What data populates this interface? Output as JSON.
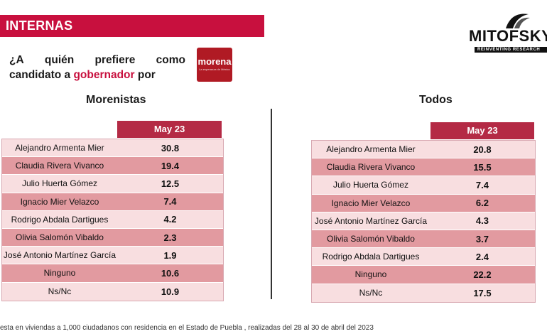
{
  "header": {
    "section_title": "INTERNAS",
    "brand_name": "MITOFSKY",
    "brand_tagline": "REINVENTING RESEARCH"
  },
  "question": {
    "line1_words": [
      "¿A",
      "quién",
      "prefiere",
      "como"
    ],
    "line2_before": "candidato a ",
    "line2_highlight": "gobernador",
    "line2_after": " por"
  },
  "party_logo": {
    "name": "morena",
    "tagline": "La esperanza de México"
  },
  "footnote": "esta en viviendas a 1,000 ciudadanos con residencia en el Estado de Puebla , realizadas del 28 al 30 de abril del 2023",
  "colors": {
    "accent": "#c8103e",
    "header_cell": "#b42a45",
    "row_light": "#f8dee0",
    "row_dark": "#e29aa0"
  },
  "chart_data": [
    {
      "type": "table",
      "title": "Morenistas",
      "column": "May 23",
      "rows": [
        {
          "label": "Alejandro Armenta Mier",
          "value": "30.8"
        },
        {
          "label": "Claudia Rivera Vivanco",
          "value": "19.4"
        },
        {
          "label": "Julio Huerta Gómez",
          "value": "12.5"
        },
        {
          "label": "Ignacio Mier Velazco",
          "value": "7.4"
        },
        {
          "label": "Rodrigo Abdala Dartigues",
          "value": "4.2"
        },
        {
          "label": "Olivia Salomón Vibaldo",
          "value": "2.3"
        },
        {
          "label": "José Antonio Martínez García",
          "value": "1.9"
        },
        {
          "label": "Ninguno",
          "value": "10.6"
        },
        {
          "label": "Ns/Nc",
          "value": "10.9"
        }
      ]
    },
    {
      "type": "table",
      "title": "Todos",
      "column": "May 23",
      "rows": [
        {
          "label": "Alejandro Armenta Mier",
          "value": "20.8"
        },
        {
          "label": "Claudia Rivera Vivanco",
          "value": "15.5"
        },
        {
          "label": "Julio Huerta Gómez",
          "value": "7.4"
        },
        {
          "label": "Ignacio Mier Velazco",
          "value": "6.2"
        },
        {
          "label": "José Antonio Martínez García",
          "value": "4.3"
        },
        {
          "label": "Olivia Salomón Vibaldo",
          "value": "3.7"
        },
        {
          "label": "Rodrigo Abdala Dartigues",
          "value": "2.4"
        },
        {
          "label": "Ninguno",
          "value": "22.2"
        },
        {
          "label": "Ns/Nc",
          "value": "17.5"
        }
      ]
    }
  ]
}
